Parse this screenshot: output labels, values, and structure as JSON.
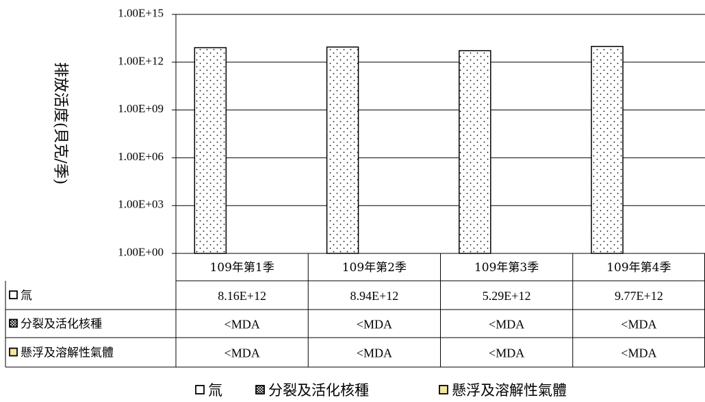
{
  "chart_data": {
    "type": "bar",
    "ylabel": "排放活度(貝克/季)",
    "yscale": "log",
    "ylim": [
      1,
      1000000000000000.0
    ],
    "ytick_labels": [
      "1.00E+15",
      "1.00E+12",
      "1.00E+09",
      "1.00E+06",
      "1.00E+03",
      "1.00E+00"
    ],
    "categories": [
      "109年第1季",
      "109年第2季",
      "109年第3季",
      "109年第4季"
    ],
    "series": [
      {
        "name": "氚",
        "values": [
          8160000000000.0,
          8940000000000.0,
          5290000000000.0,
          9770000000000.0
        ],
        "color": "#ffffff",
        "pattern": "dots"
      },
      {
        "name": "分裂及活化核種",
        "values": [
          null,
          null,
          null,
          null
        ],
        "color": "#ffffff",
        "pattern": "crosshatch"
      },
      {
        "name": "懸浮及溶解性氣體",
        "values": [
          null,
          null,
          null,
          null
        ],
        "color": "#f5e7a0",
        "pattern": "solid"
      }
    ],
    "table": [
      {
        "label": "氚",
        "cells": [
          "8.16E+12",
          "8.94E+12",
          "5.29E+12",
          "9.77E+12"
        ]
      },
      {
        "label": "分裂及活化核種",
        "cells": [
          "<MDA",
          "<MDA",
          "<MDA",
          "<MDA"
        ]
      },
      {
        "label": "懸浮及溶解性氣體",
        "cells": [
          "<MDA",
          "<MDA",
          "<MDA",
          "<MDA"
        ]
      }
    ],
    "grid": true,
    "legend_position": "bottom"
  }
}
